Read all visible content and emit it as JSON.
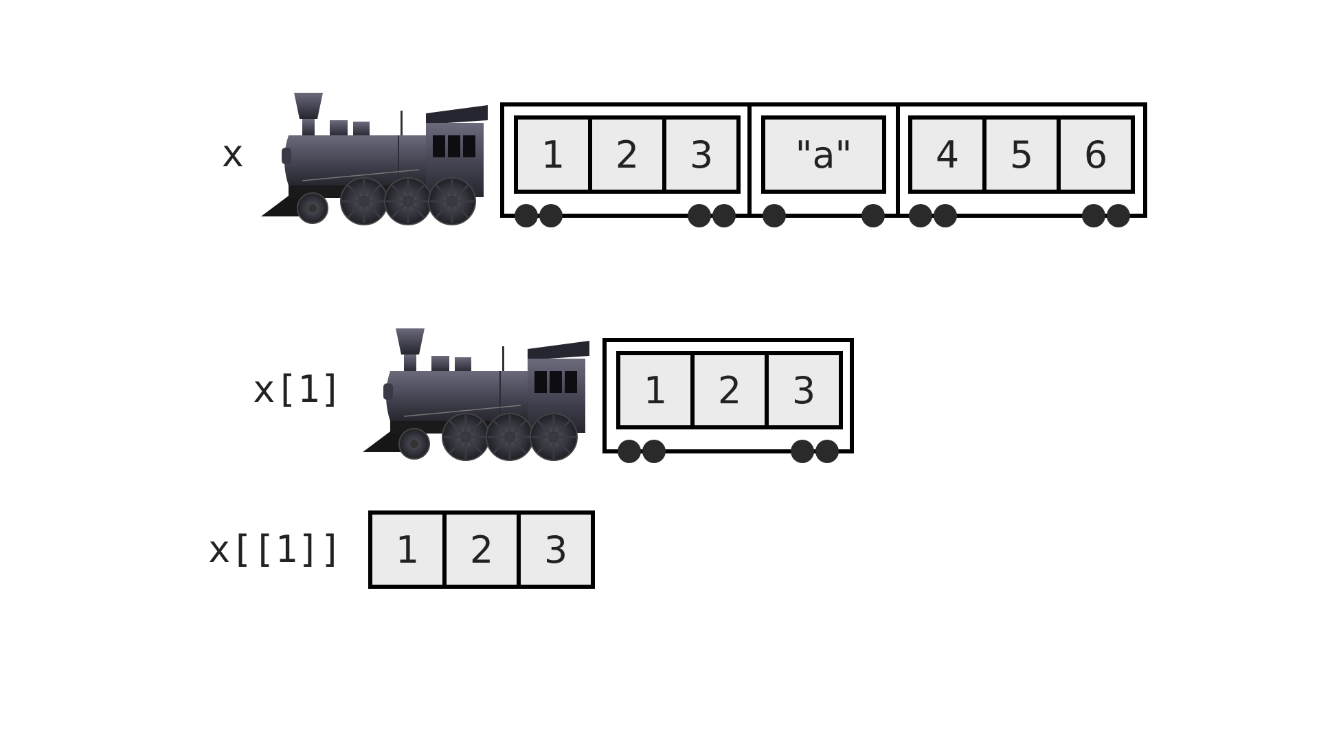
{
  "rows": {
    "x": {
      "label": "x",
      "cars": [
        {
          "cells": [
            "1",
            "2",
            "3"
          ]
        },
        {
          "cells": [
            "\"a\""
          ]
        },
        {
          "cells": [
            "4",
            "5",
            "6"
          ]
        }
      ]
    },
    "x1": {
      "label": "x[1]",
      "cars": [
        {
          "cells": [
            "1",
            "2",
            "3"
          ]
        }
      ]
    },
    "x11": {
      "label": "x[[1]]",
      "cells": [
        "1",
        "2",
        "3"
      ]
    }
  },
  "colors": {
    "locomotive_body": "#4a4a5a",
    "cell_fill": "#ebebeb",
    "outline": "#000000"
  },
  "icons": {
    "locomotive": "steam-locomotive-icon"
  }
}
